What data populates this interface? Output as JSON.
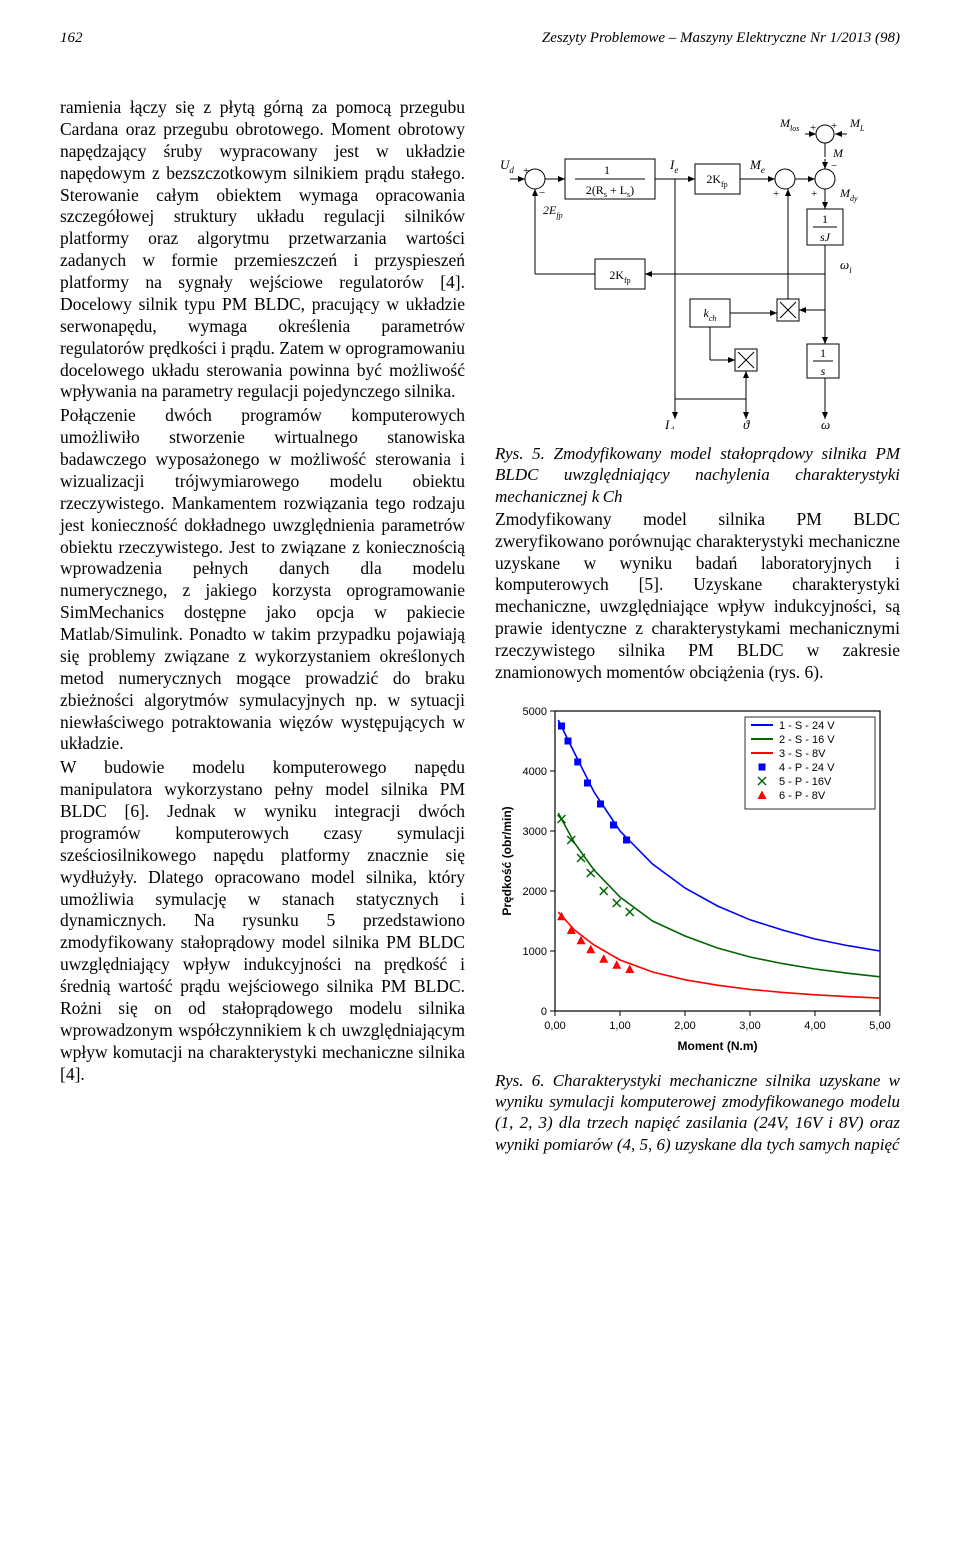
{
  "header": {
    "page_number": "162",
    "journal": "Zeszyty Problemowe – Maszyny Elektryczne Nr 1/2013 (98)"
  },
  "left_column": {
    "para": "ramienia łączy się z płytą górną za pomocą przegubu Cardana oraz przegubu obrotowego. Moment obrotowy napędzający śruby wypracowany jest w układzie napędowym z bezszczotkowym silnikiem prądu stałego. Sterowanie całym obiektem wymaga opracowania szczegółowej struktury układu regulacji silników platformy oraz algorytmu przetwarzania wartości zadanych w formie przemieszczeń i przyspieszeń platformy na sygnały wejściowe regulatorów [4]. Docelowy silnik typu PM BLDC, pracujący w układzie serwonapędu, wymaga określenia parametrów regulatorów prędkości i prądu. Zatem w oprogramowaniu docelowego układu sterowania powinna być możliwość wpływania na parametry regulacji pojedynczego silnika.",
    "para2": "Połączenie dwóch programów komputerowych umożliwiło stworzenie wirtualnego stanowiska badawczego wyposażonego w możliwość sterowania i wizualizacji trójwymiarowego modelu obiektu rzeczywistego. Mankamentem rozwiązania tego rodzaju jest konieczność dokładnego uwzględnienia parametrów obiektu rzeczywistego. Jest to związane z koniecznością wprowadzenia pełnych danych dla modelu numerycznego, z jakiego korzysta oprogramowanie SimMechanics dostępne jako opcja w pakiecie Matlab/Simulink. Ponadto w takim przypadku pojawiają się problemy związane z wykorzystaniem określonych metod numerycznych mogące prowadzić do braku zbieżności algorytmów symulacyjnych np. w sytuacji niewłaściwego potraktowania więzów występujących w układzie.",
    "para3": "W budowie modelu komputerowego napędu manipulatora wykorzystano pełny model silnika PM BLDC [6]. Jednak w wyniku integracji dwóch programów komputerowych czasy symulacji sześciosilnikowego napędu platformy znacznie się wydłużyły. Dlatego opracowano model silnika, który umożliwia symulację w stanach statycznych i dynamicznych. Na rysunku 5 przedstawiono zmodyfikowany stałoprądowy model silnika PM BLDC uwzględniający wpływ indukcyjności na prędkość i średnią wartość prądu wejściowego silnika PM BLDC. Rożni się on od stałoprądowego modelu silnika wprowadzonym współczynnikiem k ch uwzględniającym wpływ komutacji na charakterystyki mechaniczne silnika [4]."
  },
  "right_column": {
    "fig5_caption_label": "Rys. 5.",
    "fig5_caption_body": "Zmodyfikowany model stałoprądowy silnika PM BLDC uwzględniający nachylenia charakterystyki mechanicznej k Ch",
    "para_after_fig5": "Zmodyfikowany model silnika PM BLDC zweryfikowano porównując charakterystyki mechaniczne uzyskane w wyniku badań laboratoryjnych i komputerowych [5]. Uzyskane charakterystyki mechaniczne, uwzględniające wpływ indukcyjności, są prawie identyczne z charakterystykami mechanicznymi rzeczywistego silnika PM BLDC w zakresie znamionowych momentów obciążenia (rys. 6).",
    "fig6_caption_label": "Rys. 6.",
    "fig6_caption_body": "Charakterystyki mechaniczne silnika uzyskane w wyniku symulacji komputerowej zmodyfikowanego modelu (1, 2, 3) dla trzech napięć zasilania (24V, 16V i 8V) oraz wyniki pomiarów (4, 5, 6) uzyskane dla tych samych napięć"
  },
  "diagram5": {
    "labels": {
      "Ud": "Uₑ",
      "UdText": "U",
      "UdSub": "d",
      "Ie": "I",
      "IeSub": "e",
      "Me": "M",
      "MeSub": "e",
      "Mlos": "M",
      "MlosSub": "los",
      "ML": "M",
      "MLSub": "L",
      "M": "M",
      "Mdy": "M",
      "MdySub": "dy",
      "block1_num": "1",
      "block1_den": "2(Rₛ + Lₛ)",
      "block1_den_plain_a": "2(R",
      "block1_den_sub_s1": "s",
      "block1_den_plus": " + L",
      "block1_den_sub_s2": "s",
      "block1_den_close": ")",
      "Efp2": "2E",
      "EfpSub": "fp",
      "Kfp2_top": "2K",
      "KfpSub_top": "fp",
      "Kfp2_bot": "2K",
      "KfpSub_bot": "fp",
      "kch": "k",
      "kchSub": "ch",
      "sJ_num": "1",
      "sJ_den": "sJ",
      "s_num": "1",
      "s_den": "s",
      "omega_i": "ω",
      "omega_i_sub": "i",
      "Id": "I",
      "IdSub": "d",
      "theta": "ϑ",
      "omega": "ω"
    },
    "colors": {
      "stroke": "#000000",
      "fill": "#ffffff"
    }
  },
  "chart6": {
    "type": "line-scatter",
    "xlim": [
      0,
      5
    ],
    "ylim": [
      0,
      5000
    ],
    "xtick_step": 1,
    "ytick_step": 1000,
    "xlabel": "Moment (N.m)",
    "ylabel": "Prędkość (obr/min)",
    "xticks": [
      "0,00",
      "1,00",
      "2,00",
      "3,00",
      "4,00",
      "5,00"
    ],
    "yticks": [
      "0",
      "1000",
      "2000",
      "3000",
      "4000",
      "5000"
    ],
    "background_color": "#ffffff",
    "grid_color": "#000000",
    "axis_color": "#000000",
    "label_fontsize": 12,
    "tick_fontsize": 11,
    "legend_fontsize": 11,
    "line_width": 1.6,
    "series": [
      {
        "name": "1 - S - 24 V",
        "color": "#0000ff",
        "kind": "line",
        "points": [
          [
            0.05,
            4850
          ],
          [
            0.3,
            4300
          ],
          [
            0.6,
            3650
          ],
          [
            1.0,
            3000
          ],
          [
            1.5,
            2450
          ],
          [
            2.0,
            2050
          ],
          [
            2.5,
            1750
          ],
          [
            3.0,
            1520
          ],
          [
            3.5,
            1350
          ],
          [
            4.0,
            1200
          ],
          [
            4.5,
            1090
          ],
          [
            5.0,
            1000
          ]
        ]
      },
      {
        "name": "2 - S - 16 V",
        "color": "#006400",
        "kind": "line",
        "points": [
          [
            0.05,
            3300
          ],
          [
            0.3,
            2800
          ],
          [
            0.6,
            2350
          ],
          [
            1.0,
            1900
          ],
          [
            1.5,
            1500
          ],
          [
            2.0,
            1250
          ],
          [
            2.5,
            1050
          ],
          [
            3.0,
            900
          ],
          [
            3.5,
            790
          ],
          [
            4.0,
            700
          ],
          [
            4.5,
            630
          ],
          [
            5.0,
            570
          ]
        ]
      },
      {
        "name": "3 - S - 8V",
        "color": "#ff0000",
        "kind": "line",
        "points": [
          [
            0.05,
            1650
          ],
          [
            0.3,
            1350
          ],
          [
            0.6,
            1100
          ],
          [
            1.0,
            850
          ],
          [
            1.5,
            650
          ],
          [
            2.0,
            520
          ],
          [
            2.5,
            430
          ],
          [
            3.0,
            360
          ],
          [
            3.5,
            310
          ],
          [
            4.0,
            270
          ],
          [
            4.5,
            240
          ],
          [
            5.0,
            215
          ]
        ]
      },
      {
        "name": "4 - P - 24 V",
        "color": "#0000ff",
        "kind": "marker",
        "marker": "square",
        "points": [
          [
            0.1,
            4750
          ],
          [
            0.2,
            4500
          ],
          [
            0.35,
            4150
          ],
          [
            0.5,
            3800
          ],
          [
            0.7,
            3450
          ],
          [
            0.9,
            3100
          ],
          [
            1.1,
            2850
          ]
        ]
      },
      {
        "name": "5 - P - 16V",
        "color": "#006400",
        "kind": "marker",
        "marker": "x",
        "points": [
          [
            0.1,
            3200
          ],
          [
            0.25,
            2850
          ],
          [
            0.4,
            2550
          ],
          [
            0.55,
            2300
          ],
          [
            0.75,
            2000
          ],
          [
            0.95,
            1800
          ],
          [
            1.15,
            1650
          ]
        ]
      },
      {
        "name": "6 - P - 8V",
        "color": "#ff0000",
        "kind": "marker",
        "marker": "triangle",
        "points": [
          [
            0.1,
            1580
          ],
          [
            0.25,
            1350
          ],
          [
            0.4,
            1180
          ],
          [
            0.55,
            1030
          ],
          [
            0.75,
            870
          ],
          [
            0.95,
            770
          ],
          [
            1.15,
            700
          ]
        ]
      }
    ],
    "legend_items": [
      {
        "label": "1 - S - 24 V",
        "color": "#0000ff",
        "kind": "line"
      },
      {
        "label": "2 - S - 16 V",
        "color": "#006400",
        "kind": "line"
      },
      {
        "label": "3 - S - 8V",
        "color": "#ff0000",
        "kind": "line"
      },
      {
        "label": "4 - P - 24 V",
        "color": "#0000ff",
        "kind": "marker",
        "marker": "square"
      },
      {
        "label": "5 - P - 16V",
        "color": "#006400",
        "kind": "marker",
        "marker": "x"
      },
      {
        "label": "6 - P - 8V",
        "color": "#ff0000",
        "kind": "marker",
        "marker": "triangle"
      }
    ]
  }
}
